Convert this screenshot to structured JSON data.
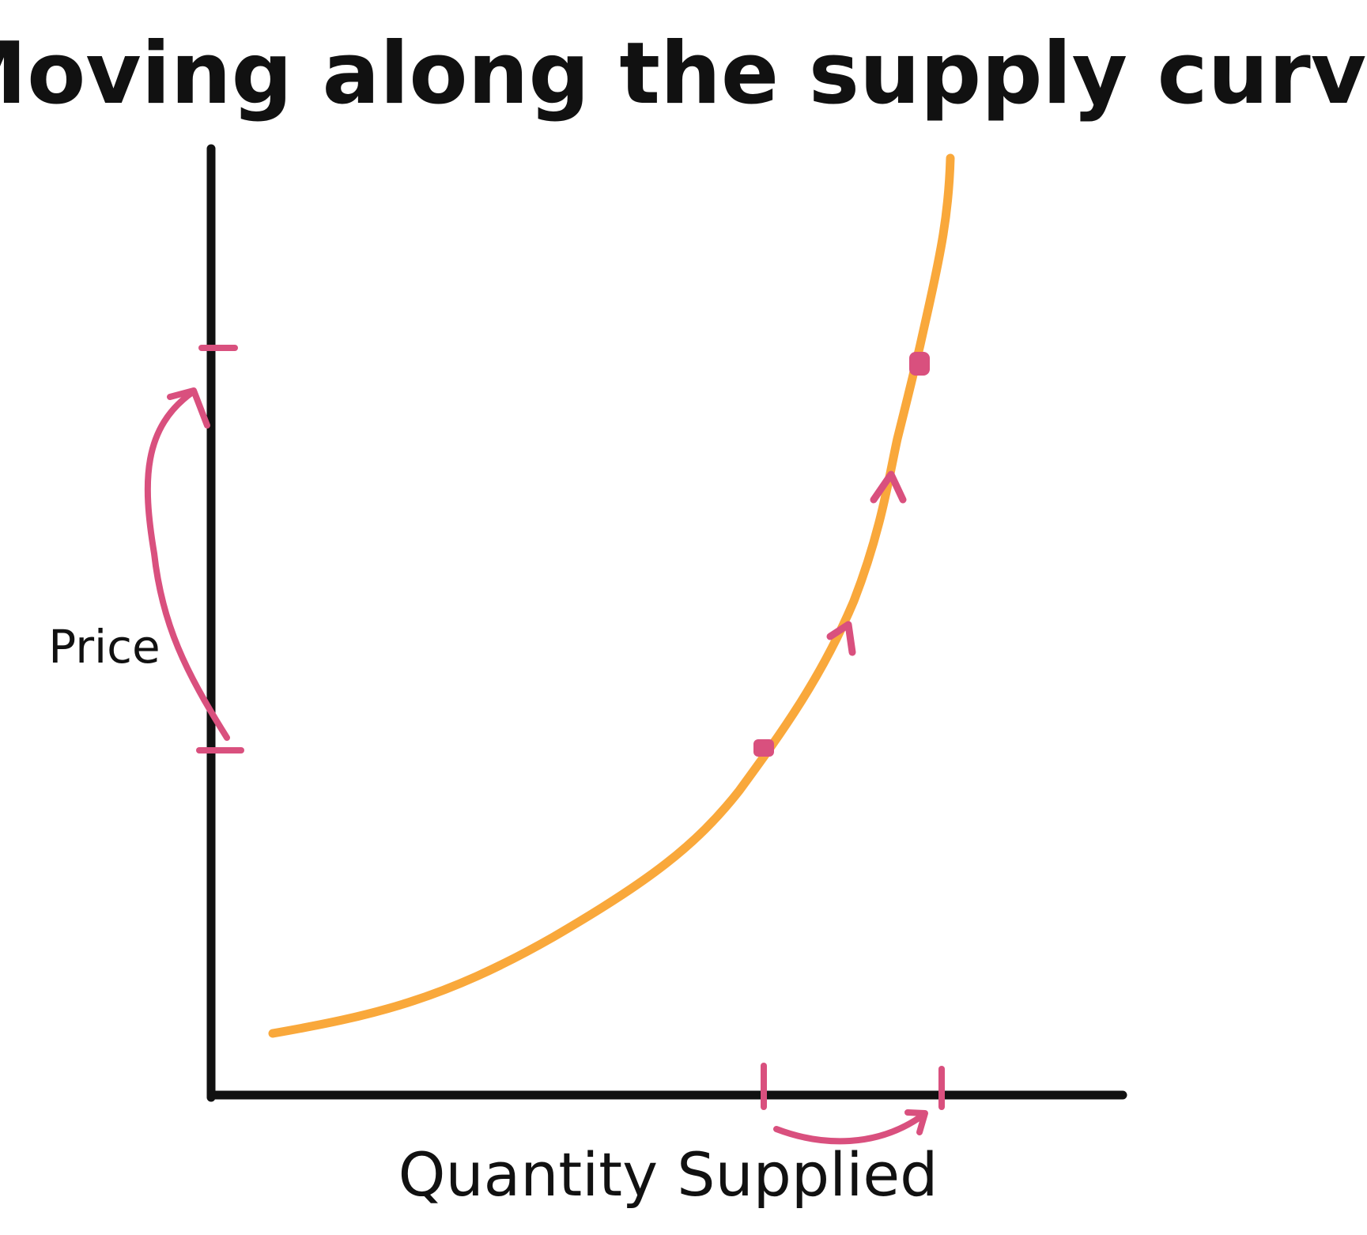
{
  "title": "Moving along the supply curve",
  "axes": {
    "y_label": "Price",
    "x_label": "Quantity Supplied"
  },
  "colors": {
    "axis": "#111111",
    "supply_curve": "#F9A83B",
    "annotation": "#D9507E",
    "text": "#111111",
    "background": "#FFFFFF"
  },
  "annotations": {
    "movement_direction": "up-along-curve",
    "points": 2,
    "price_change": "increase",
    "quantity_change": "increase"
  }
}
